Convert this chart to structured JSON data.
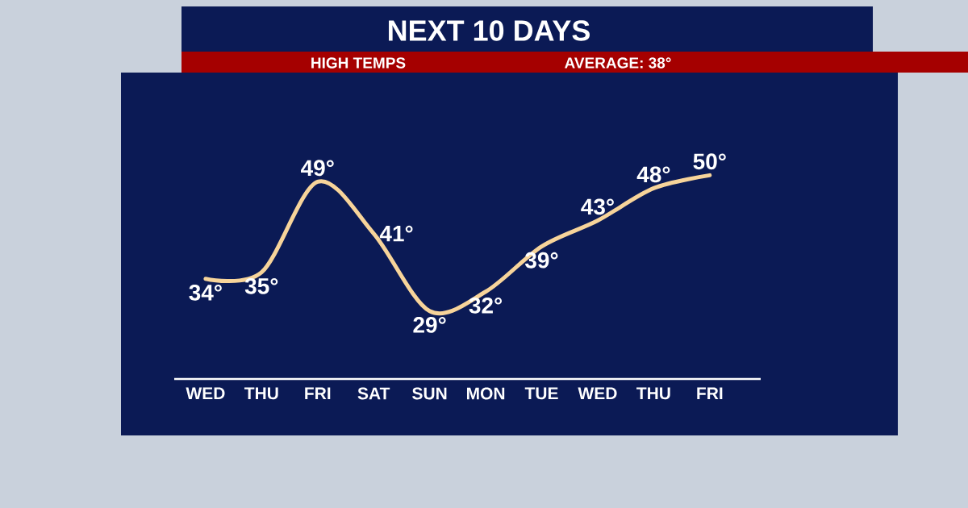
{
  "chart_data": {
    "type": "line",
    "title": "NEXT 10 DAYS",
    "subtitle": "HIGH TEMPS",
    "annotations": [
      "AVERAGE: 38°"
    ],
    "categories": [
      "WED",
      "THU",
      "FRI",
      "SAT",
      "SUN",
      "MON",
      "TUE",
      "WED",
      "THU",
      "FRI"
    ],
    "values": [
      34,
      35,
      49,
      41,
      29,
      32,
      39,
      43,
      48,
      50
    ],
    "value_labels": [
      "34°",
      "35°",
      "49°",
      "41°",
      "29°",
      "32°",
      "39°",
      "43°",
      "48°",
      "50°"
    ],
    "color": "#f7d49a"
  }
}
